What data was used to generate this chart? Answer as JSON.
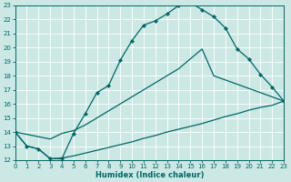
{
  "xlabel": "Humidex (Indice chaleur)",
  "background_color": "#cce8e5",
  "grid_color": "#b8d8d5",
  "line_color": "#006666",
  "xmin": 0,
  "xmax": 23,
  "ymin": 12,
  "ymax": 23,
  "curve1_x": [
    0,
    1,
    2,
    3,
    4,
    5,
    6,
    7,
    8,
    9,
    10,
    11,
    12,
    13,
    14,
    15,
    16,
    17,
    18,
    19,
    20,
    21,
    22,
    23
  ],
  "curve1_y": [
    14.0,
    13.0,
    12.8,
    12.1,
    12.1,
    13.9,
    15.3,
    16.8,
    17.3,
    19.1,
    20.5,
    21.6,
    21.9,
    22.4,
    23.0,
    23.2,
    22.7,
    22.2,
    21.4,
    19.9,
    19.2,
    18.1,
    17.2,
    16.2
  ],
  "curve2_x": [
    0,
    3,
    4,
    5,
    6,
    7,
    8,
    9,
    10,
    11,
    12,
    13,
    14,
    15,
    16,
    17,
    18,
    19,
    20,
    21,
    22,
    23
  ],
  "curve2_y": [
    14.0,
    13.5,
    13.9,
    14.1,
    14.5,
    15.0,
    15.5,
    16.0,
    16.5,
    17.0,
    17.5,
    18.0,
    18.5,
    19.2,
    19.9,
    18.0,
    17.7,
    17.4,
    17.1,
    16.8,
    16.5,
    16.2
  ],
  "curve3_x": [
    0,
    1,
    2,
    3,
    4,
    5,
    6,
    7,
    8,
    9,
    10,
    11,
    12,
    13,
    14,
    15,
    16,
    17,
    18,
    19,
    20,
    21,
    22,
    23
  ],
  "curve3_y": [
    14.0,
    13.0,
    12.8,
    12.1,
    12.15,
    12.3,
    12.5,
    12.7,
    12.9,
    13.1,
    13.3,
    13.55,
    13.75,
    14.0,
    14.2,
    14.4,
    14.6,
    14.85,
    15.1,
    15.3,
    15.55,
    15.75,
    15.9,
    16.2
  ]
}
